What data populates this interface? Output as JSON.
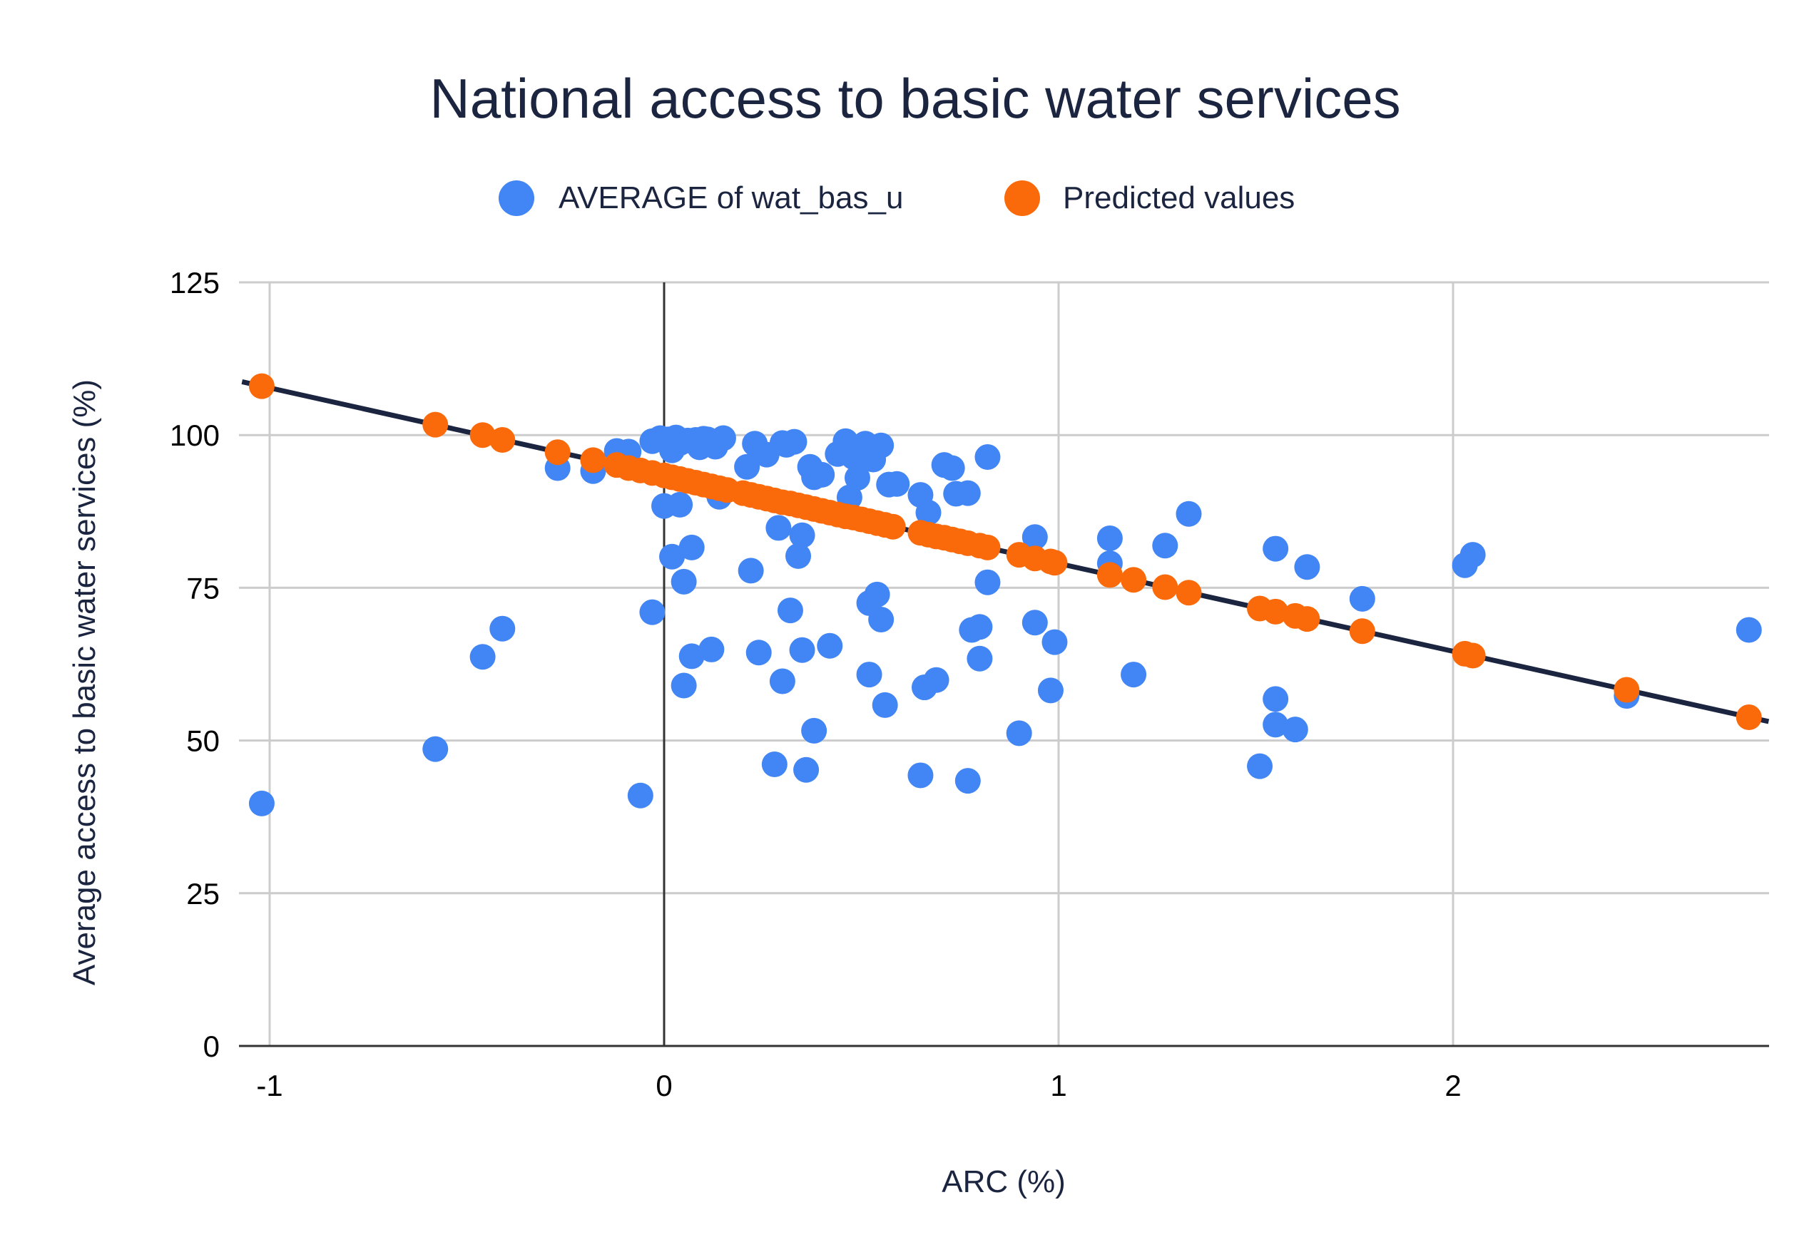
{
  "chart_data": {
    "type": "scatter",
    "title": "National access to basic water services",
    "xlabel": "ARC (%)",
    "ylabel": "Average access to basic water services (%)",
    "xlim": [
      -1.07,
      2.8
    ],
    "ylim": [
      0,
      125
    ],
    "x_ticks": [
      "-1",
      "0",
      "1",
      "2"
    ],
    "y_ticks": [
      "0",
      "25",
      "50",
      "75",
      "100",
      "125"
    ],
    "grid": true,
    "legend_position": "top",
    "trendline": {
      "slope": -14.37,
      "intercept": 93.35,
      "color": "#1b2540"
    },
    "series": [
      {
        "name": "AVERAGE of wat_bas_u",
        "color": "#4285f4",
        "points": [
          [
            -1.02,
            39.7
          ],
          [
            -0.58,
            48.6
          ],
          [
            -0.46,
            63.7
          ],
          [
            -0.41,
            68.3
          ],
          [
            -0.27,
            94.6
          ],
          [
            -0.18,
            94.1
          ],
          [
            -0.12,
            97.4
          ],
          [
            -0.09,
            97.3
          ],
          [
            -0.06,
            41.0
          ],
          [
            -0.03,
            71.0
          ],
          [
            -0.03,
            99.0
          ],
          [
            -0.01,
            99.5
          ],
          [
            0.0,
            88.4
          ],
          [
            0.01,
            99.3
          ],
          [
            0.02,
            80.1
          ],
          [
            0.02,
            97.5
          ],
          [
            0.03,
            99.6
          ],
          [
            0.04,
            98.7
          ],
          [
            0.04,
            88.6
          ],
          [
            0.05,
            76.0
          ],
          [
            0.05,
            59.0
          ],
          [
            0.06,
            99.1
          ],
          [
            0.07,
            63.8
          ],
          [
            0.07,
            81.6
          ],
          [
            0.08,
            99.2
          ],
          [
            0.09,
            98.0
          ],
          [
            0.1,
            99.4
          ],
          [
            0.11,
            99.3
          ],
          [
            0.12,
            64.9
          ],
          [
            0.13,
            98.1
          ],
          [
            0.14,
            89.9
          ],
          [
            0.15,
            99.5
          ],
          [
            0.21,
            94.8
          ],
          [
            0.22,
            77.8
          ],
          [
            0.23,
            98.6
          ],
          [
            0.24,
            64.4
          ],
          [
            0.26,
            96.8
          ],
          [
            0.28,
            46.1
          ],
          [
            0.29,
            84.8
          ],
          [
            0.3,
            98.7
          ],
          [
            0.3,
            59.7
          ],
          [
            0.31,
            98.4
          ],
          [
            0.32,
            71.3
          ],
          [
            0.33,
            98.9
          ],
          [
            0.34,
            80.2
          ],
          [
            0.35,
            83.6
          ],
          [
            0.35,
            64.8
          ],
          [
            0.36,
            45.2
          ],
          [
            0.37,
            94.8
          ],
          [
            0.38,
            93.1
          ],
          [
            0.38,
            51.6
          ],
          [
            0.4,
            93.5
          ],
          [
            0.42,
            65.5
          ],
          [
            0.44,
            96.9
          ],
          [
            0.46,
            99.0
          ],
          [
            0.47,
            89.8
          ],
          [
            0.48,
            96.4
          ],
          [
            0.49,
            93.0
          ],
          [
            0.5,
            97.3
          ],
          [
            0.51,
            98.6
          ],
          [
            0.52,
            72.5
          ],
          [
            0.52,
            60.8
          ],
          [
            0.53,
            96.0
          ],
          [
            0.54,
            73.9
          ],
          [
            0.55,
            98.3
          ],
          [
            0.55,
            69.8
          ],
          [
            0.56,
            55.8
          ],
          [
            0.57,
            91.9
          ],
          [
            0.59,
            92.0
          ],
          [
            0.65,
            44.3
          ],
          [
            0.65,
            90.2
          ],
          [
            0.66,
            58.7
          ],
          [
            0.67,
            87.3
          ],
          [
            0.69,
            59.9
          ],
          [
            0.71,
            95.1
          ],
          [
            0.73,
            94.6
          ],
          [
            0.74,
            90.4
          ],
          [
            0.77,
            90.5
          ],
          [
            0.77,
            43.4
          ],
          [
            0.78,
            68.1
          ],
          [
            0.8,
            63.4
          ],
          [
            0.8,
            68.6
          ],
          [
            0.82,
            96.4
          ],
          [
            0.82,
            75.9
          ],
          [
            0.9,
            51.2
          ],
          [
            0.94,
            83.3
          ],
          [
            0.94,
            69.3
          ],
          [
            0.98,
            58.2
          ],
          [
            0.99,
            66.1
          ],
          [
            1.13,
            83.1
          ],
          [
            1.13,
            79.0
          ],
          [
            1.19,
            60.8
          ],
          [
            1.27,
            81.9
          ],
          [
            1.33,
            87.1
          ],
          [
            1.51,
            45.8
          ],
          [
            1.55,
            81.4
          ],
          [
            1.55,
            56.8
          ],
          [
            1.55,
            52.6
          ],
          [
            1.6,
            51.8
          ],
          [
            1.63,
            78.4
          ],
          [
            1.77,
            73.2
          ],
          [
            2.03,
            78.7
          ],
          [
            2.05,
            80.4
          ],
          [
            2.44,
            57.3
          ],
          [
            2.75,
            68.1
          ]
        ]
      },
      {
        "name": "Predicted values",
        "color": "#fa6a0a",
        "points": [
          [
            -1.02,
            108.0
          ],
          [
            -0.58,
            101.7
          ],
          [
            -0.46,
            100.0
          ],
          [
            -0.41,
            99.2
          ],
          [
            -0.27,
            97.2
          ],
          [
            -0.18,
            95.9
          ],
          [
            -0.12,
            95.1
          ],
          [
            -0.09,
            94.6
          ],
          [
            -0.06,
            94.2
          ],
          [
            -0.03,
            93.8
          ],
          [
            0.0,
            93.4
          ],
          [
            0.02,
            93.1
          ],
          [
            0.04,
            92.8
          ],
          [
            0.06,
            92.5
          ],
          [
            0.08,
            92.2
          ],
          [
            0.1,
            91.9
          ],
          [
            0.12,
            91.6
          ],
          [
            0.14,
            91.3
          ],
          [
            0.16,
            91.0
          ],
          [
            0.2,
            90.5
          ],
          [
            0.22,
            90.2
          ],
          [
            0.24,
            89.9
          ],
          [
            0.26,
            89.6
          ],
          [
            0.28,
            89.3
          ],
          [
            0.3,
            89.0
          ],
          [
            0.32,
            88.8
          ],
          [
            0.34,
            88.5
          ],
          [
            0.36,
            88.2
          ],
          [
            0.38,
            87.9
          ],
          [
            0.4,
            87.6
          ],
          [
            0.42,
            87.3
          ],
          [
            0.44,
            87.0
          ],
          [
            0.46,
            86.7
          ],
          [
            0.48,
            86.5
          ],
          [
            0.5,
            86.2
          ],
          [
            0.52,
            85.9
          ],
          [
            0.54,
            85.6
          ],
          [
            0.56,
            85.3
          ],
          [
            0.58,
            85.0
          ],
          [
            0.65,
            84.0
          ],
          [
            0.67,
            83.7
          ],
          [
            0.69,
            83.4
          ],
          [
            0.71,
            83.2
          ],
          [
            0.73,
            82.9
          ],
          [
            0.75,
            82.6
          ],
          [
            0.77,
            82.3
          ],
          [
            0.8,
            81.9
          ],
          [
            0.82,
            81.6
          ],
          [
            0.9,
            80.4
          ],
          [
            0.94,
            79.8
          ],
          [
            0.98,
            79.3
          ],
          [
            0.99,
            79.1
          ],
          [
            1.13,
            77.1
          ],
          [
            1.19,
            76.3
          ],
          [
            1.27,
            75.1
          ],
          [
            1.33,
            74.2
          ],
          [
            1.51,
            71.6
          ],
          [
            1.55,
            71.1
          ],
          [
            1.6,
            70.4
          ],
          [
            1.63,
            69.9
          ],
          [
            1.77,
            67.9
          ],
          [
            2.03,
            64.2
          ],
          [
            2.05,
            63.9
          ],
          [
            2.44,
            58.3
          ],
          [
            2.75,
            53.8
          ]
        ]
      }
    ]
  }
}
